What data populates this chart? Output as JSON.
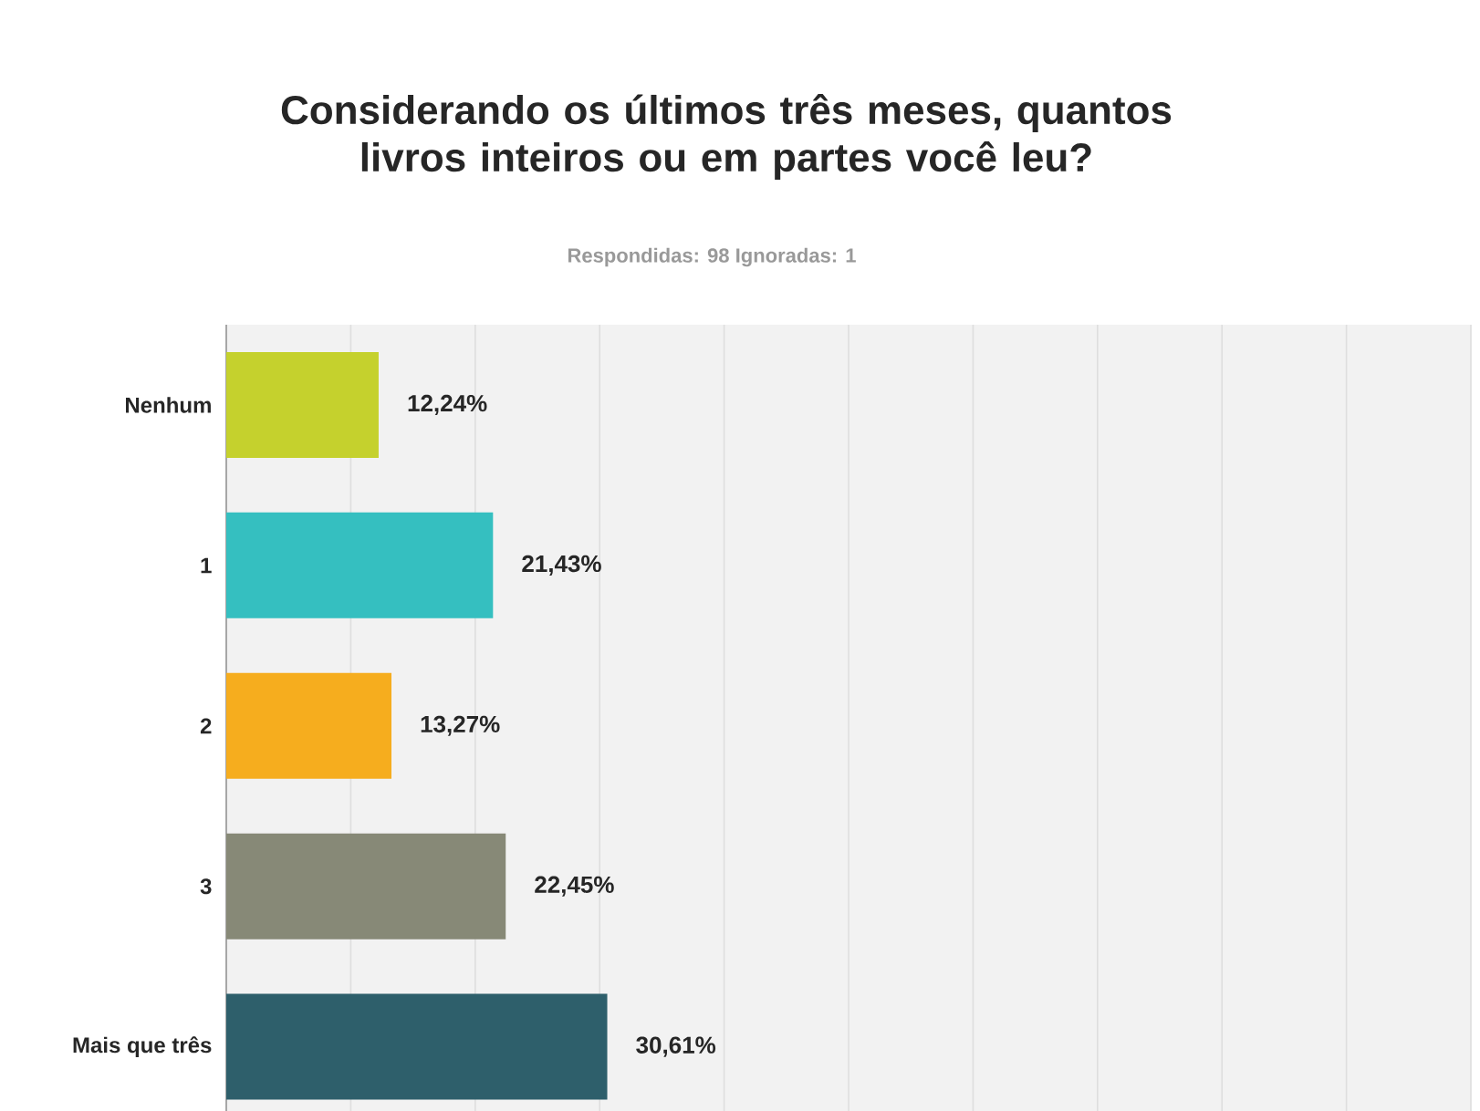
{
  "chart_data": {
    "type": "bar",
    "orientation": "horizontal",
    "title": "Considerando os últimos três meses, quantos livros inteiros ou em partes você leu?",
    "subtitle": "Respondidas: 98   Ignoradas: 1",
    "categories": [
      "Nenhum",
      "1",
      "2",
      "3",
      "Mais que três"
    ],
    "values": [
      12.24,
      21.43,
      13.27,
      22.45,
      30.61
    ],
    "colors": [
      "#c5d12d",
      "#35bfc0",
      "#f6ad1e",
      "#878977",
      "#2e5f6b"
    ],
    "value_labels": [
      "12,24%",
      "21,43%",
      "13,27%",
      "22,45%",
      "30,61%"
    ],
    "xlim": [
      0,
      100
    ],
    "xticks": [
      {
        "value": 0,
        "label": null
      },
      {
        "value": 10,
        "label": null
      },
      {
        "value": 20,
        "label": null
      },
      {
        "value": 30,
        "label": null
      },
      {
        "value": 40,
        "label": null
      },
      {
        "value": 50,
        "label": null
      },
      {
        "value": 60,
        "label": null
      },
      {
        "value": 70,
        "label": null
      },
      {
        "value": 80,
        "label": null
      },
      {
        "value": 90,
        "label": null
      },
      {
        "value": 100,
        "label": null
      }
    ],
    "tick_labels": "y",
    "grid": "x"
  }
}
